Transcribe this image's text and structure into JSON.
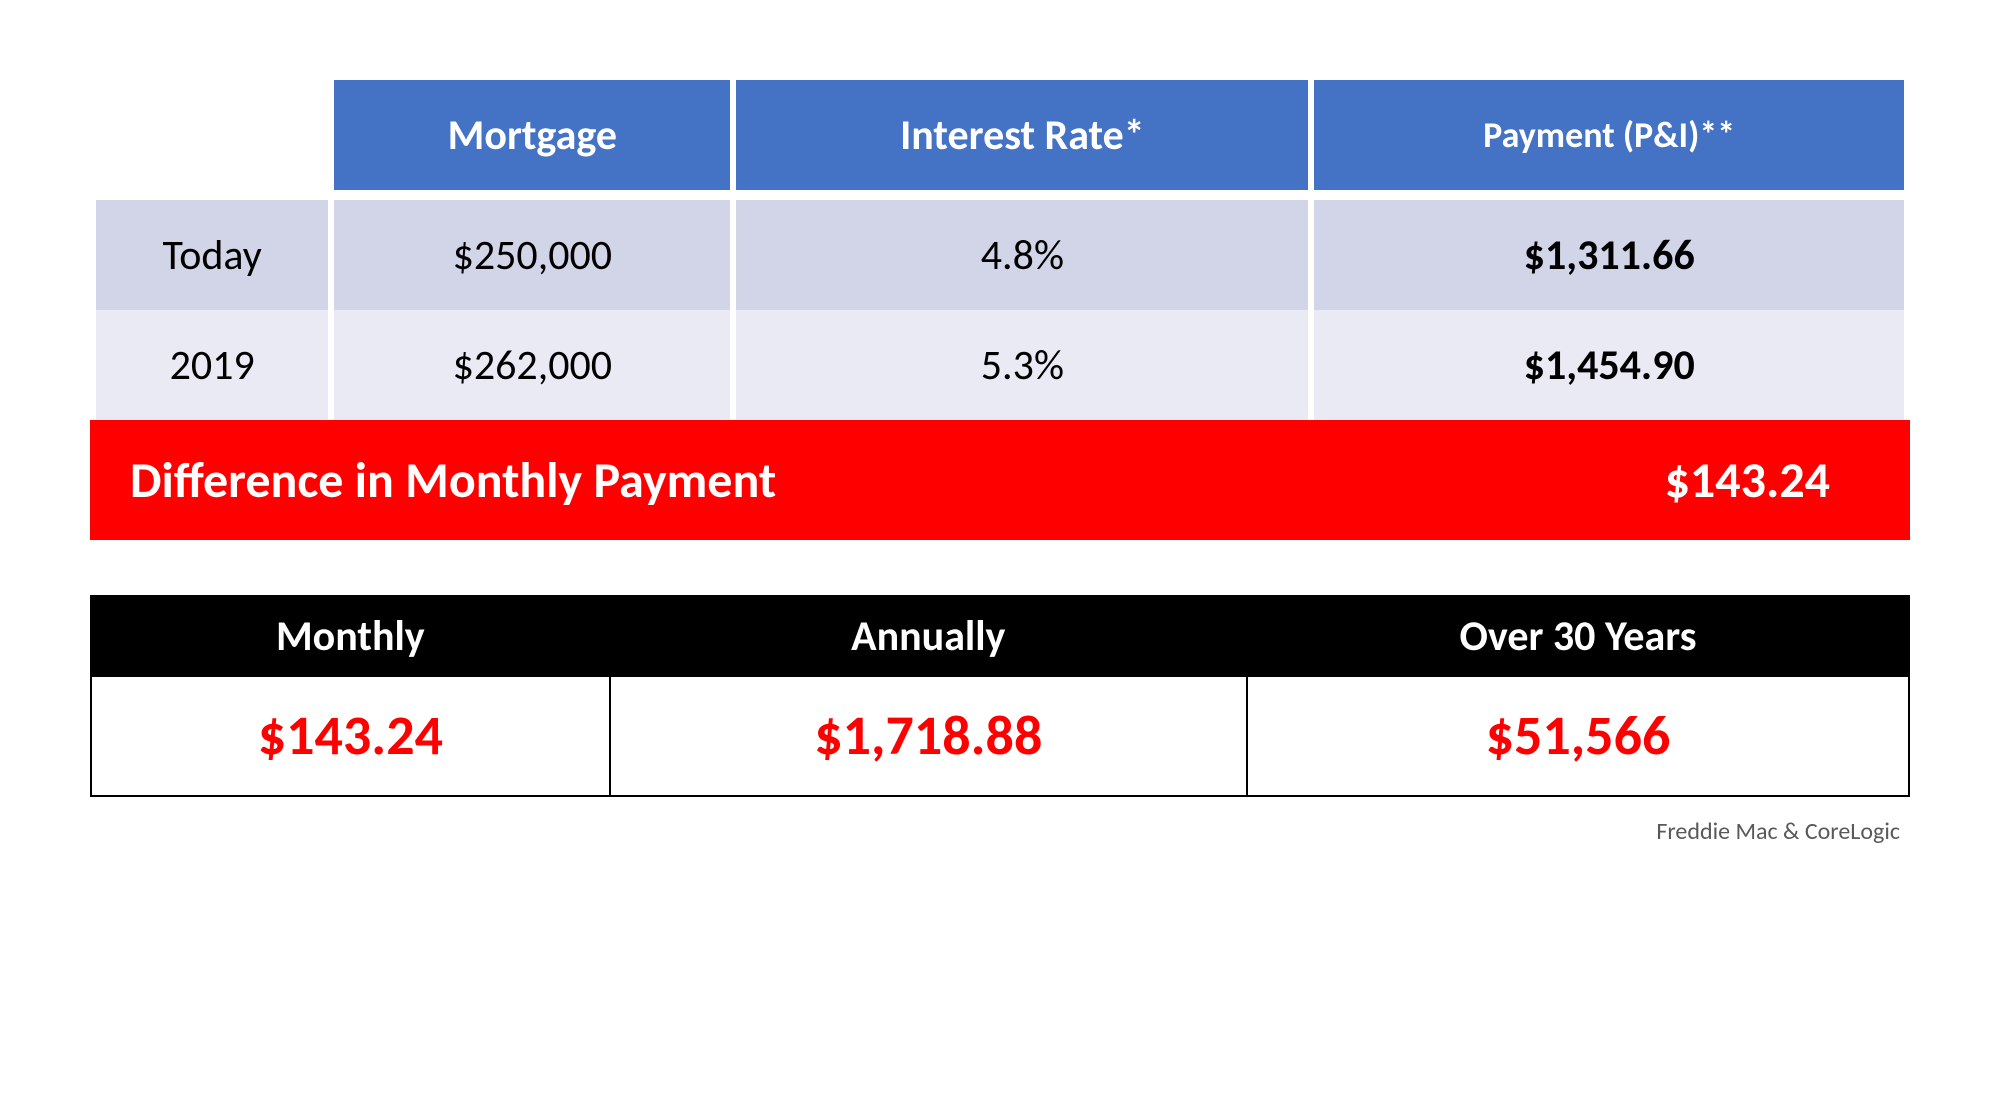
{
  "table": {
    "headers": {
      "mortgage": "Mortgage",
      "interest_rate": "Interest Rate*",
      "payment": "Payment (P&I)**"
    },
    "rows": [
      {
        "label": "Today",
        "mortgage": "$250,000",
        "rate": "4.8%",
        "payment": "$1,311.66"
      },
      {
        "label": "2019",
        "mortgage": "$262,000",
        "rate": "5.3%",
        "payment": "$1,454.90"
      }
    ],
    "colors": {
      "header_bg": "#4472c4",
      "header_text": "#ffffff",
      "row1_bg": "#d2d4e8",
      "row2_bg": "#e9eaf4",
      "cell_text": "#000000"
    }
  },
  "difference": {
    "label": "Difference in Monthly Payment",
    "value": "$143.24",
    "bg_color": "#ff0000",
    "text_color": "#ffffff"
  },
  "summary": {
    "headers": {
      "monthly": "Monthly",
      "annually": "Annually",
      "over30": "Over 30 Years"
    },
    "values": {
      "monthly": "$143.24",
      "annually": "$1,718.88",
      "over30": "$51,566"
    },
    "header_bg": "#000000",
    "header_text": "#ffffff",
    "value_text": "#ff0000",
    "value_bg": "#ffffff",
    "border_color": "#000000"
  },
  "source": "Freddie Mac & CoreLogic",
  "typography": {
    "header_fontsize_pt": 32,
    "cell_fontsize_pt": 32,
    "diff_fontsize_pt": 38,
    "summary_header_fontsize_pt": 32,
    "summary_value_fontsize_pt": 42,
    "source_fontsize_pt": 18,
    "font_family": "Calibri"
  }
}
